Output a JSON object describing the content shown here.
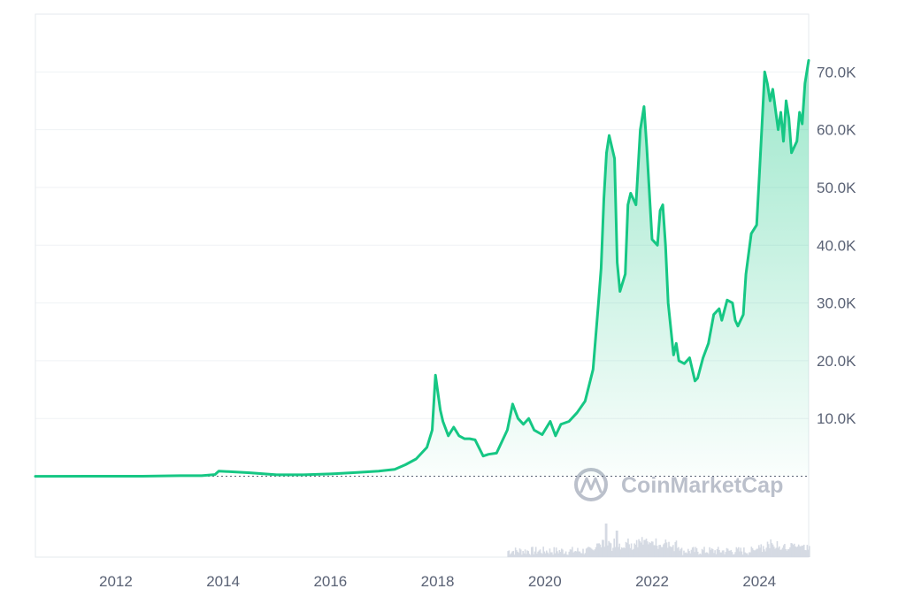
{
  "chart_data": {
    "type": "area",
    "title": "",
    "xlabel": "",
    "ylabel": "",
    "xlim": [
      2010.5,
      2024.92
    ],
    "ylim": [
      -14000,
      80000
    ],
    "grid": true,
    "watermark": "CoinMarketCap",
    "x_ticks": [
      {
        "value": 2012,
        "label": "2012"
      },
      {
        "value": 2014,
        "label": "2014"
      },
      {
        "value": 2016,
        "label": "2016"
      },
      {
        "value": 2018,
        "label": "2018"
      },
      {
        "value": 2020,
        "label": "2020"
      },
      {
        "value": 2022,
        "label": "2022"
      },
      {
        "value": 2024,
        "label": "2024"
      }
    ],
    "y_ticks": [
      {
        "value": 10000,
        "label": "10.0K"
      },
      {
        "value": 20000,
        "label": "20.0K"
      },
      {
        "value": 30000,
        "label": "30.0K"
      },
      {
        "value": 40000,
        "label": "40.0K"
      },
      {
        "value": 50000,
        "label": "50.0K"
      },
      {
        "value": 60000,
        "label": "60.0K"
      },
      {
        "value": 70000,
        "label": "70.0K"
      }
    ],
    "colors": {
      "line": "#16c784",
      "area_top": "#16c784",
      "grid": "#eff2f5",
      "tick_text": "#5a6275",
      "baseline_dots": "#5a6275",
      "volume": "#d5dae3",
      "watermark": "#b4bac6"
    },
    "series": [
      {
        "x": [
          2010.5,
          2011.5,
          2012.5,
          2013.2,
          2013.6,
          2013.85,
          2013.92,
          2014.1,
          2014.5,
          2015.0,
          2015.5,
          2016.0,
          2016.5,
          2016.9,
          2017.2,
          2017.4,
          2017.6,
          2017.8,
          2017.9,
          2017.96,
          2018.05,
          2018.1,
          2018.2,
          2018.3,
          2018.4,
          2018.5,
          2018.6,
          2018.7,
          2018.85,
          2018.95,
          2019.1,
          2019.3,
          2019.4,
          2019.5,
          2019.6,
          2019.7,
          2019.8,
          2019.95,
          2020.1,
          2020.2,
          2020.3,
          2020.45,
          2020.6,
          2020.75,
          2020.9,
          2021.0,
          2021.05,
          2021.1,
          2021.15,
          2021.2,
          2021.3,
          2021.35,
          2021.4,
          2021.5,
          2021.55,
          2021.6,
          2021.7,
          2021.78,
          2021.85,
          2021.9,
          2022.0,
          2022.1,
          2022.15,
          2022.2,
          2022.25,
          2022.3,
          2022.4,
          2022.45,
          2022.5,
          2022.6,
          2022.7,
          2022.8,
          2022.85,
          2022.95,
          2023.05,
          2023.15,
          2023.25,
          2023.3,
          2023.4,
          2023.5,
          2023.55,
          2023.6,
          2023.7,
          2023.75,
          2023.85,
          2023.95,
          2024.0,
          2024.05,
          2024.1,
          2024.15,
          2024.2,
          2024.25,
          2024.35,
          2024.4,
          2024.45,
          2024.5,
          2024.55,
          2024.6,
          2024.7,
          2024.75,
          2024.8,
          2024.85,
          2024.92
        ],
        "y": [
          0,
          5,
          10,
          100,
          100,
          300,
          900,
          800,
          600,
          250,
          250,
          400,
          650,
          900,
          1200,
          2000,
          3000,
          5000,
          8000,
          17500,
          11500,
          9500,
          7000,
          8500,
          7000,
          6500,
          6500,
          6300,
          3500,
          3800,
          4000,
          8000,
          12500,
          10000,
          9000,
          10000,
          8000,
          7200,
          9500,
          7000,
          9000,
          9500,
          11000,
          13000,
          18500,
          30000,
          36000,
          48000,
          56000,
          59000,
          55000,
          37000,
          32000,
          35000,
          47000,
          49000,
          47000,
          60000,
          64000,
          57000,
          41000,
          40000,
          46000,
          47000,
          40000,
          30000,
          21000,
          23000,
          20000,
          19500,
          20500,
          16500,
          17000,
          20500,
          23000,
          28000,
          29000,
          27000,
          30500,
          30000,
          27000,
          26000,
          28000,
          35000,
          42000,
          43500,
          52000,
          61000,
          70000,
          68000,
          65000,
          67000,
          60000,
          63000,
          58000,
          65000,
          62000,
          56000,
          58000,
          63000,
          61000,
          68000,
          72000
        ]
      }
    ]
  }
}
